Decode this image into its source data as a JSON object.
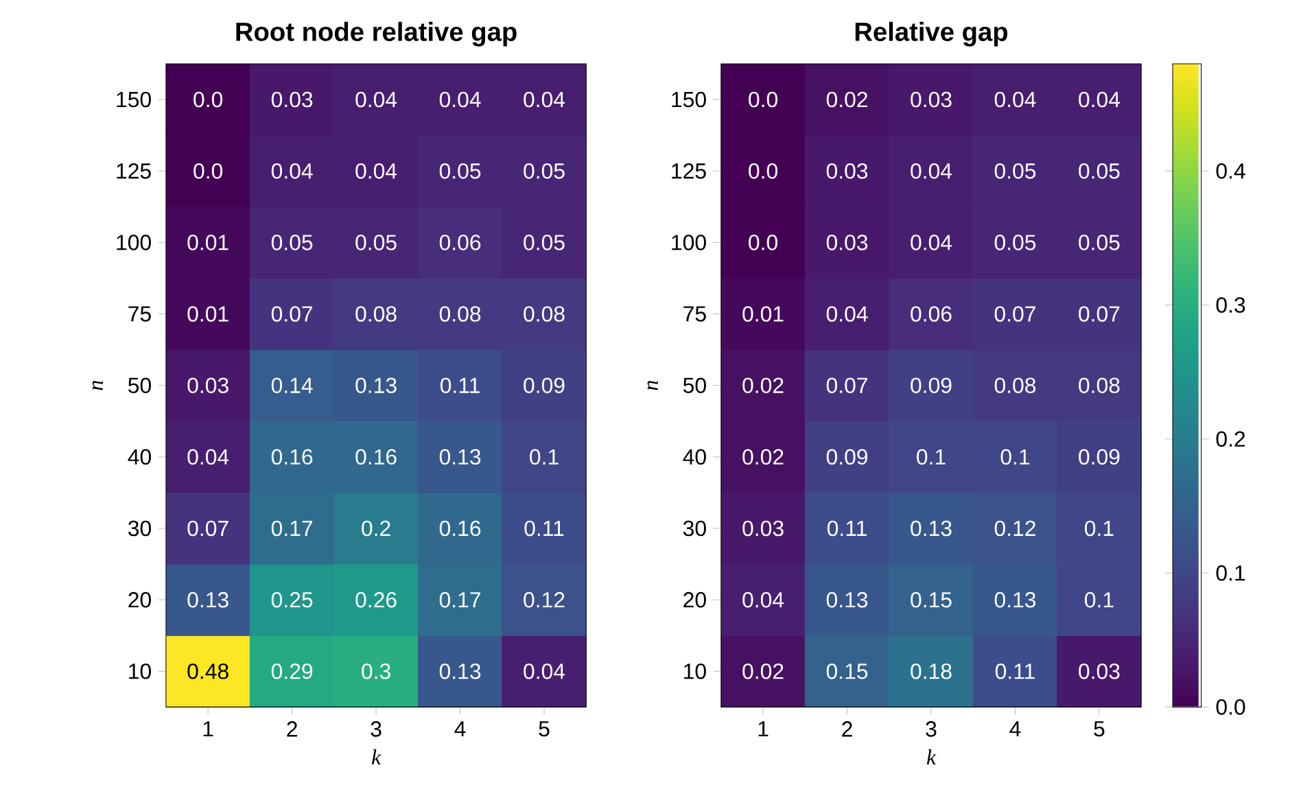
{
  "chart_data": [
    {
      "type": "heatmap",
      "title": "Root node relative gap",
      "xlabel": "k",
      "ylabel": "n",
      "categories": [
        "1",
        "2",
        "3",
        "4",
        "5"
      ],
      "y_categories": [
        "150",
        "125",
        "100",
        "75",
        "50",
        "40",
        "30",
        "20",
        "10"
      ],
      "cells": [
        [
          0,
          0.03,
          0.04,
          0.04,
          0.04
        ],
        [
          0,
          0.04,
          0.04,
          0.05,
          0.05
        ],
        [
          0.01,
          0.05,
          0.05,
          0.06,
          0.05
        ],
        [
          0.01,
          0.07,
          0.08,
          0.08,
          0.08
        ],
        [
          0.03,
          0.14,
          0.13,
          0.11,
          0.09
        ],
        [
          0.04,
          0.16,
          0.16,
          0.13,
          0.1
        ],
        [
          0.07,
          0.17,
          0.2,
          0.16,
          0.11
        ],
        [
          0.13,
          0.25,
          0.26,
          0.17,
          0.12
        ],
        [
          0.48,
          0.29,
          0.3,
          0.13,
          0.04
        ]
      ],
      "cell_labels": [
        [
          "0.0",
          "0.03",
          "0.04",
          "0.04",
          "0.04"
        ],
        [
          "0.0",
          "0.04",
          "0.04",
          "0.05",
          "0.05"
        ],
        [
          "0.01",
          "0.05",
          "0.05",
          "0.06",
          "0.05"
        ],
        [
          "0.01",
          "0.07",
          "0.08",
          "0.08",
          "0.08"
        ],
        [
          "0.03",
          "0.14",
          "0.13",
          "0.11",
          "0.09"
        ],
        [
          "0.04",
          "0.16",
          "0.16",
          "0.13",
          "0.1"
        ],
        [
          "0.07",
          "0.17",
          "0.2",
          "0.16",
          "0.11"
        ],
        [
          "0.13",
          "0.25",
          "0.26",
          "0.17",
          "0.12"
        ],
        [
          "0.48",
          "0.29",
          "0.3",
          "0.13",
          "0.04"
        ]
      ]
    },
    {
      "type": "heatmap",
      "title": "Relative gap",
      "xlabel": "k",
      "ylabel": "n",
      "categories": [
        "1",
        "2",
        "3",
        "4",
        "5"
      ],
      "y_categories": [
        "150",
        "125",
        "100",
        "75",
        "50",
        "40",
        "30",
        "20",
        "10"
      ],
      "cells": [
        [
          0,
          0.02,
          0.03,
          0.04,
          0.04
        ],
        [
          0,
          0.03,
          0.04,
          0.05,
          0.05
        ],
        [
          0,
          0.03,
          0.04,
          0.05,
          0.05
        ],
        [
          0.01,
          0.04,
          0.06,
          0.07,
          0.07
        ],
        [
          0.02,
          0.07,
          0.09,
          0.08,
          0.08
        ],
        [
          0.02,
          0.09,
          0.1,
          0.1,
          0.09
        ],
        [
          0.03,
          0.11,
          0.13,
          0.12,
          0.1
        ],
        [
          0.04,
          0.13,
          0.15,
          0.13,
          0.1
        ],
        [
          0.02,
          0.15,
          0.18,
          0.11,
          0.03
        ]
      ],
      "cell_labels": [
        [
          "0.0",
          "0.02",
          "0.03",
          "0.04",
          "0.04"
        ],
        [
          "0.0",
          "0.03",
          "0.04",
          "0.05",
          "0.05"
        ],
        [
          "0.0",
          "0.03",
          "0.04",
          "0.05",
          "0.05"
        ],
        [
          "0.01",
          "0.04",
          "0.06",
          "0.07",
          "0.07"
        ],
        [
          "0.02",
          "0.07",
          "0.09",
          "0.08",
          "0.08"
        ],
        [
          "0.02",
          "0.09",
          "0.1",
          "0.1",
          "0.09"
        ],
        [
          "0.03",
          "0.11",
          "0.13",
          "0.12",
          "0.1"
        ],
        [
          "0.04",
          "0.13",
          "0.15",
          "0.13",
          "0.1"
        ],
        [
          "0.02",
          "0.15",
          "0.18",
          "0.11",
          "0.03"
        ]
      ],
      "clim": [
        0,
        0.48
      ],
      "cticks": [
        {
          "value": 0,
          "label": "0.0"
        },
        0.1,
        0.2,
        0.3,
        0.4
      ]
    }
  ]
}
